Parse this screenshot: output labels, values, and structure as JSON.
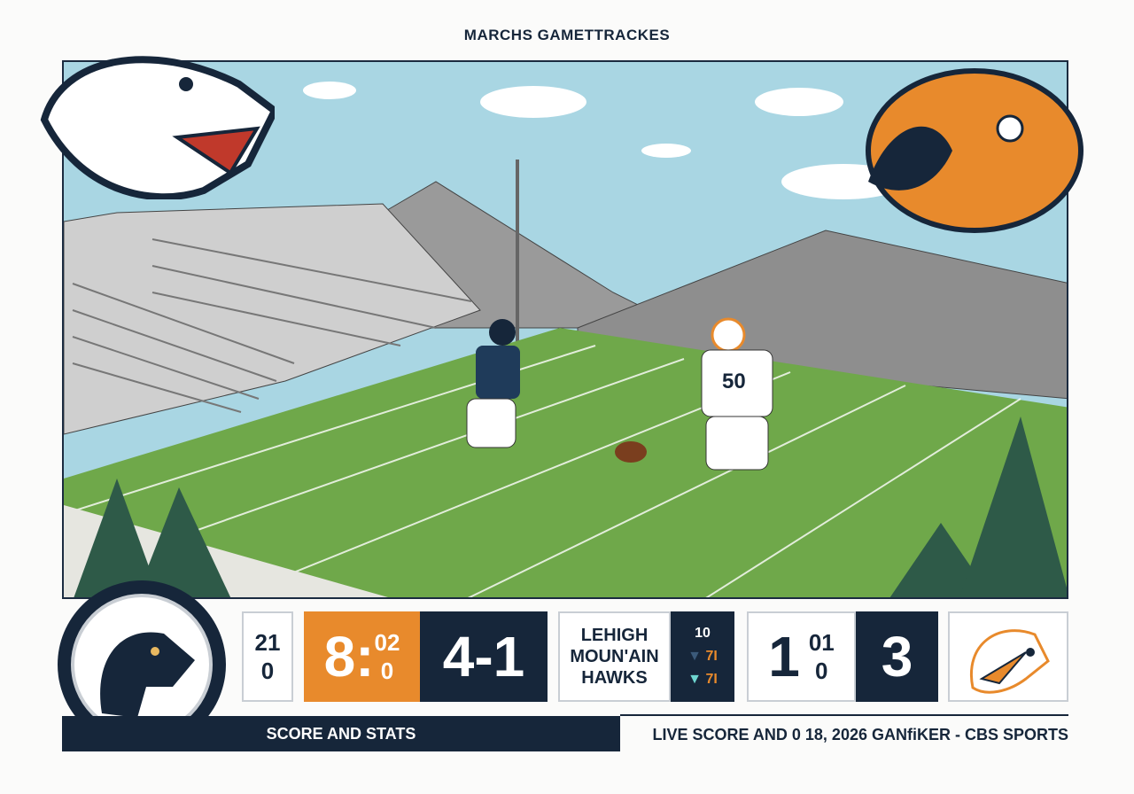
{
  "header": {
    "title": "MARCHS GAMETTRACKES"
  },
  "colors": {
    "navy": "#16263a",
    "orange": "#e88a2c",
    "field": "#6fa84a",
    "sky": "#a9d6e3"
  },
  "scene": {
    "jersey_number": "50"
  },
  "scoreboard": {
    "cell1": {
      "top": "21",
      "bottom": "0"
    },
    "clock": {
      "main": "8:",
      "top": "02",
      "bottom": "0"
    },
    "score1": "4-1",
    "team_name": [
      "LEHIGH",
      "MOUN'AIN",
      "HAWKS"
    ],
    "mini": {
      "top": "10",
      "row1": "7I",
      "row2": "7I"
    },
    "cell2": {
      "main": "1",
      "top": "01",
      "bottom": "0"
    },
    "score2": "3"
  },
  "footer": {
    "left_label": "SCORE AND STATS",
    "right_label": "LIVE SCORE AND 0 18, 2026 GANfiKER - CBS SPORTS"
  },
  "icons": [
    "white-mascot-logo",
    "orange-mascot-logo",
    "navy-mascot-logo",
    "hawk-logo"
  ]
}
